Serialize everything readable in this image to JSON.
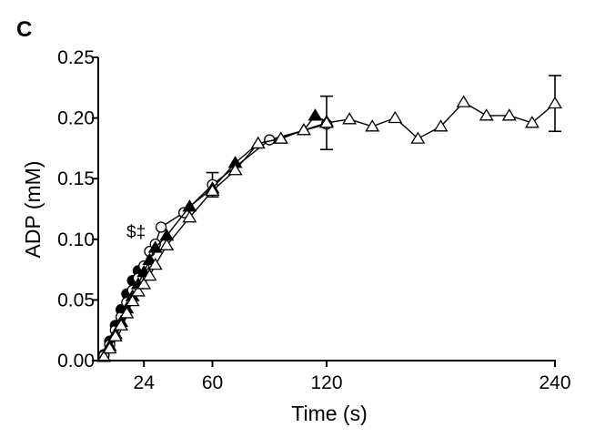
{
  "panel_label": "C",
  "chart_data": {
    "type": "line",
    "xlabel": "Time (s)",
    "ylabel": "ADP (mM)",
    "xlim": [
      0,
      240
    ],
    "ylim": [
      0,
      0.25
    ],
    "xticks": [
      24,
      60,
      120,
      240
    ],
    "xtick_labels": [
      "24",
      "60",
      "120",
      "240"
    ],
    "yticks": [
      0,
      0.05,
      0.1,
      0.15,
      0.2,
      0.25
    ],
    "ytick_labels": [
      "0.00",
      "0.05",
      "0.10",
      "0.15",
      "0.20",
      "0.25"
    ],
    "grid": false,
    "annotations": [
      {
        "text": "$‡",
        "x": 24,
        "y": 0.1
      }
    ],
    "series": [
      {
        "marker": "filled-circle",
        "color": "#000000",
        "points": [
          {
            "x": 3,
            "y": 0.005
          },
          {
            "x": 6,
            "y": 0.016
          },
          {
            "x": 9,
            "y": 0.029
          },
          {
            "x": 12,
            "y": 0.042
          },
          {
            "x": 15,
            "y": 0.055
          },
          {
            "x": 18,
            "y": 0.066
          },
          {
            "x": 21,
            "y": 0.074
          }
        ]
      },
      {
        "marker": "open-circle",
        "color": "#000000",
        "points": [
          {
            "x": 3,
            "y": 0.004
          },
          {
            "x": 6,
            "y": 0.013
          },
          {
            "x": 9,
            "y": 0.025
          },
          {
            "x": 12,
            "y": 0.036
          },
          {
            "x": 15,
            "y": 0.048
          },
          {
            "x": 18,
            "y": 0.058
          },
          {
            "x": 21,
            "y": 0.068
          },
          {
            "x": 24,
            "y": 0.078
          },
          {
            "x": 27,
            "y": 0.09
          },
          {
            "x": 30,
            "y": 0.096
          },
          {
            "x": 33,
            "y": 0.11
          },
          {
            "x": 45,
            "y": 0.122
          },
          {
            "x": 60,
            "y": 0.145,
            "err": 0.01
          },
          {
            "x": 90,
            "y": 0.182
          },
          {
            "x": 120,
            "y": 0.195
          }
        ]
      },
      {
        "marker": "filled-triangle",
        "color": "#000000",
        "points": [
          {
            "x": 3,
            "y": 0.003
          },
          {
            "x": 6,
            "y": 0.012
          },
          {
            "x": 9,
            "y": 0.022
          },
          {
            "x": 12,
            "y": 0.032
          },
          {
            "x": 15,
            "y": 0.043
          },
          {
            "x": 18,
            "y": 0.053
          },
          {
            "x": 21,
            "y": 0.063
          },
          {
            "x": 24,
            "y": 0.073
          },
          {
            "x": 27,
            "y": 0.083
          },
          {
            "x": 30,
            "y": 0.093
          },
          {
            "x": 36,
            "y": 0.103
          },
          {
            "x": 48,
            "y": 0.127
          },
          {
            "x": 60,
            "y": 0.142
          },
          {
            "x": 72,
            "y": 0.163
          },
          {
            "x": 84,
            "y": 0.179
          },
          {
            "x": 96,
            "y": 0.183
          },
          {
            "x": 108,
            "y": 0.19
          },
          {
            "x": 114,
            "y": 0.202
          },
          {
            "x": 120,
            "y": 0.197
          }
        ]
      },
      {
        "marker": "open-triangle",
        "color": "#000000",
        "points": [
          {
            "x": 3,
            "y": 0.003
          },
          {
            "x": 6,
            "y": 0.01
          },
          {
            "x": 9,
            "y": 0.02
          },
          {
            "x": 12,
            "y": 0.029
          },
          {
            "x": 15,
            "y": 0.039
          },
          {
            "x": 18,
            "y": 0.049
          },
          {
            "x": 21,
            "y": 0.057
          },
          {
            "x": 24,
            "y": 0.063
          },
          {
            "x": 27,
            "y": 0.07
          },
          {
            "x": 30,
            "y": 0.079
          },
          {
            "x": 36,
            "y": 0.095
          },
          {
            "x": 48,
            "y": 0.118
          },
          {
            "x": 60,
            "y": 0.14
          },
          {
            "x": 72,
            "y": 0.157
          },
          {
            "x": 84,
            "y": 0.179
          },
          {
            "x": 96,
            "y": 0.183
          },
          {
            "x": 108,
            "y": 0.19
          },
          {
            "x": 120,
            "y": 0.196,
            "err": 0.022
          },
          {
            "x": 132,
            "y": 0.199
          },
          {
            "x": 144,
            "y": 0.193
          },
          {
            "x": 156,
            "y": 0.2
          },
          {
            "x": 168,
            "y": 0.183
          },
          {
            "x": 180,
            "y": 0.193
          },
          {
            "x": 192,
            "y": 0.213
          },
          {
            "x": 204,
            "y": 0.202
          },
          {
            "x": 216,
            "y": 0.202
          },
          {
            "x": 228,
            "y": 0.196
          },
          {
            "x": 240,
            "y": 0.212,
            "err": 0.023
          }
        ]
      }
    ]
  }
}
